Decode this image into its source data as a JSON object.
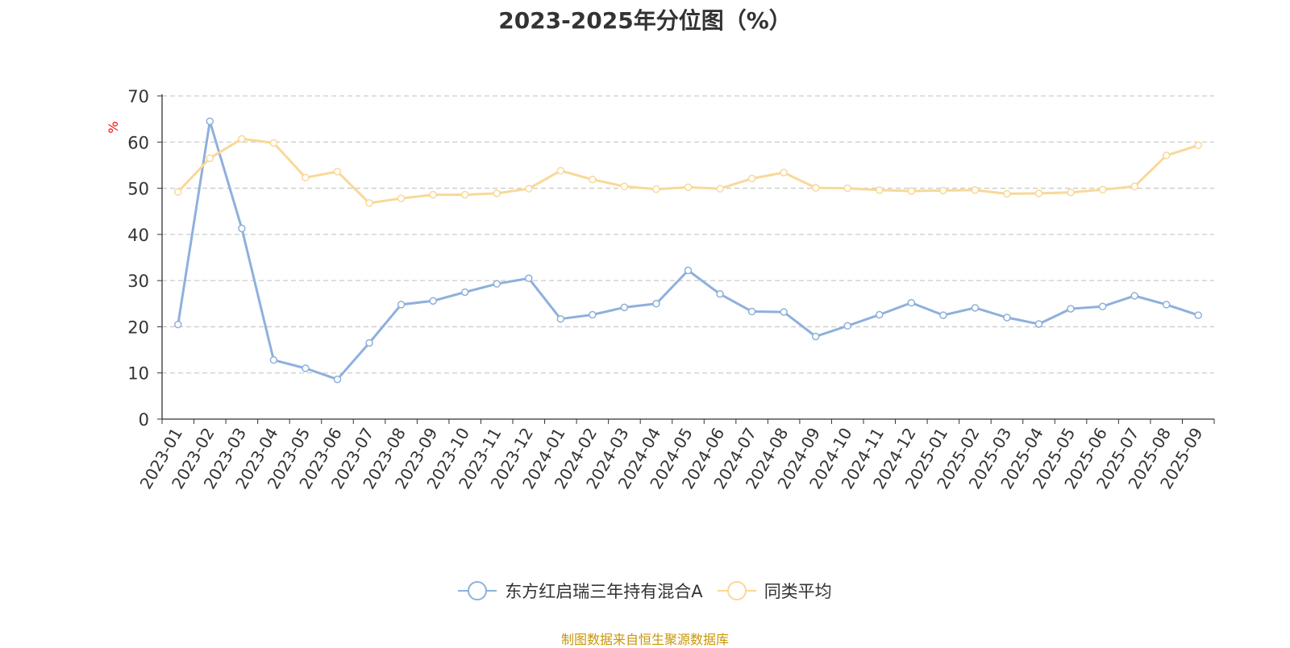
{
  "title": "2023-2025年分位图（%）",
  "source": "制图数据来自恒生聚源数据库",
  "chart_data": {
    "type": "line",
    "title": "2023-2025年分位图（%）",
    "ylabel": "%",
    "ylim": [
      0,
      70
    ],
    "yticks": [
      0,
      10,
      20,
      30,
      40,
      50,
      60,
      70
    ],
    "grid": true,
    "legend_position": "bottom",
    "categories": [
      "2023-01",
      "2023-02",
      "2023-03",
      "2023-04",
      "2023-05",
      "2023-06",
      "2023-07",
      "2023-08",
      "2023-09",
      "2023-10",
      "2023-11",
      "2023-12",
      "2024-01",
      "2024-02",
      "2024-03",
      "2024-04",
      "2024-05",
      "2024-06",
      "2024-07",
      "2024-08",
      "2024-09",
      "2024-10",
      "2024-11",
      "2024-12",
      "2025-01",
      "2025-02",
      "2025-03",
      "2025-04",
      "2025-05",
      "2025-06",
      "2025-07",
      "2025-08",
      "2025-09"
    ],
    "series": [
      {
        "name": "东方红启瑞三年持有混合A",
        "color": "#8eb0dc",
        "values": [
          20.5,
          64.5,
          41.3,
          12.8,
          11.0,
          8.6,
          16.5,
          24.8,
          25.6,
          27.5,
          29.3,
          30.5,
          21.7,
          22.6,
          24.2,
          25.0,
          32.2,
          27.1,
          23.3,
          23.2,
          17.9,
          20.2,
          22.6,
          25.2,
          22.5,
          24.1,
          22.0,
          20.6,
          23.9,
          24.4,
          26.7,
          24.8,
          22.5
        ]
      },
      {
        "name": "同类平均",
        "color": "#f9d898",
        "values": [
          49.2,
          56.5,
          60.7,
          59.8,
          52.3,
          53.6,
          46.8,
          47.8,
          48.6,
          48.6,
          48.9,
          49.9,
          53.8,
          51.9,
          50.4,
          49.8,
          50.2,
          49.9,
          52.1,
          53.4,
          50.1,
          50.0,
          49.6,
          49.4,
          49.5,
          49.6,
          48.8,
          48.9,
          49.1,
          49.7,
          50.4,
          57.1,
          59.3
        ]
      }
    ]
  }
}
